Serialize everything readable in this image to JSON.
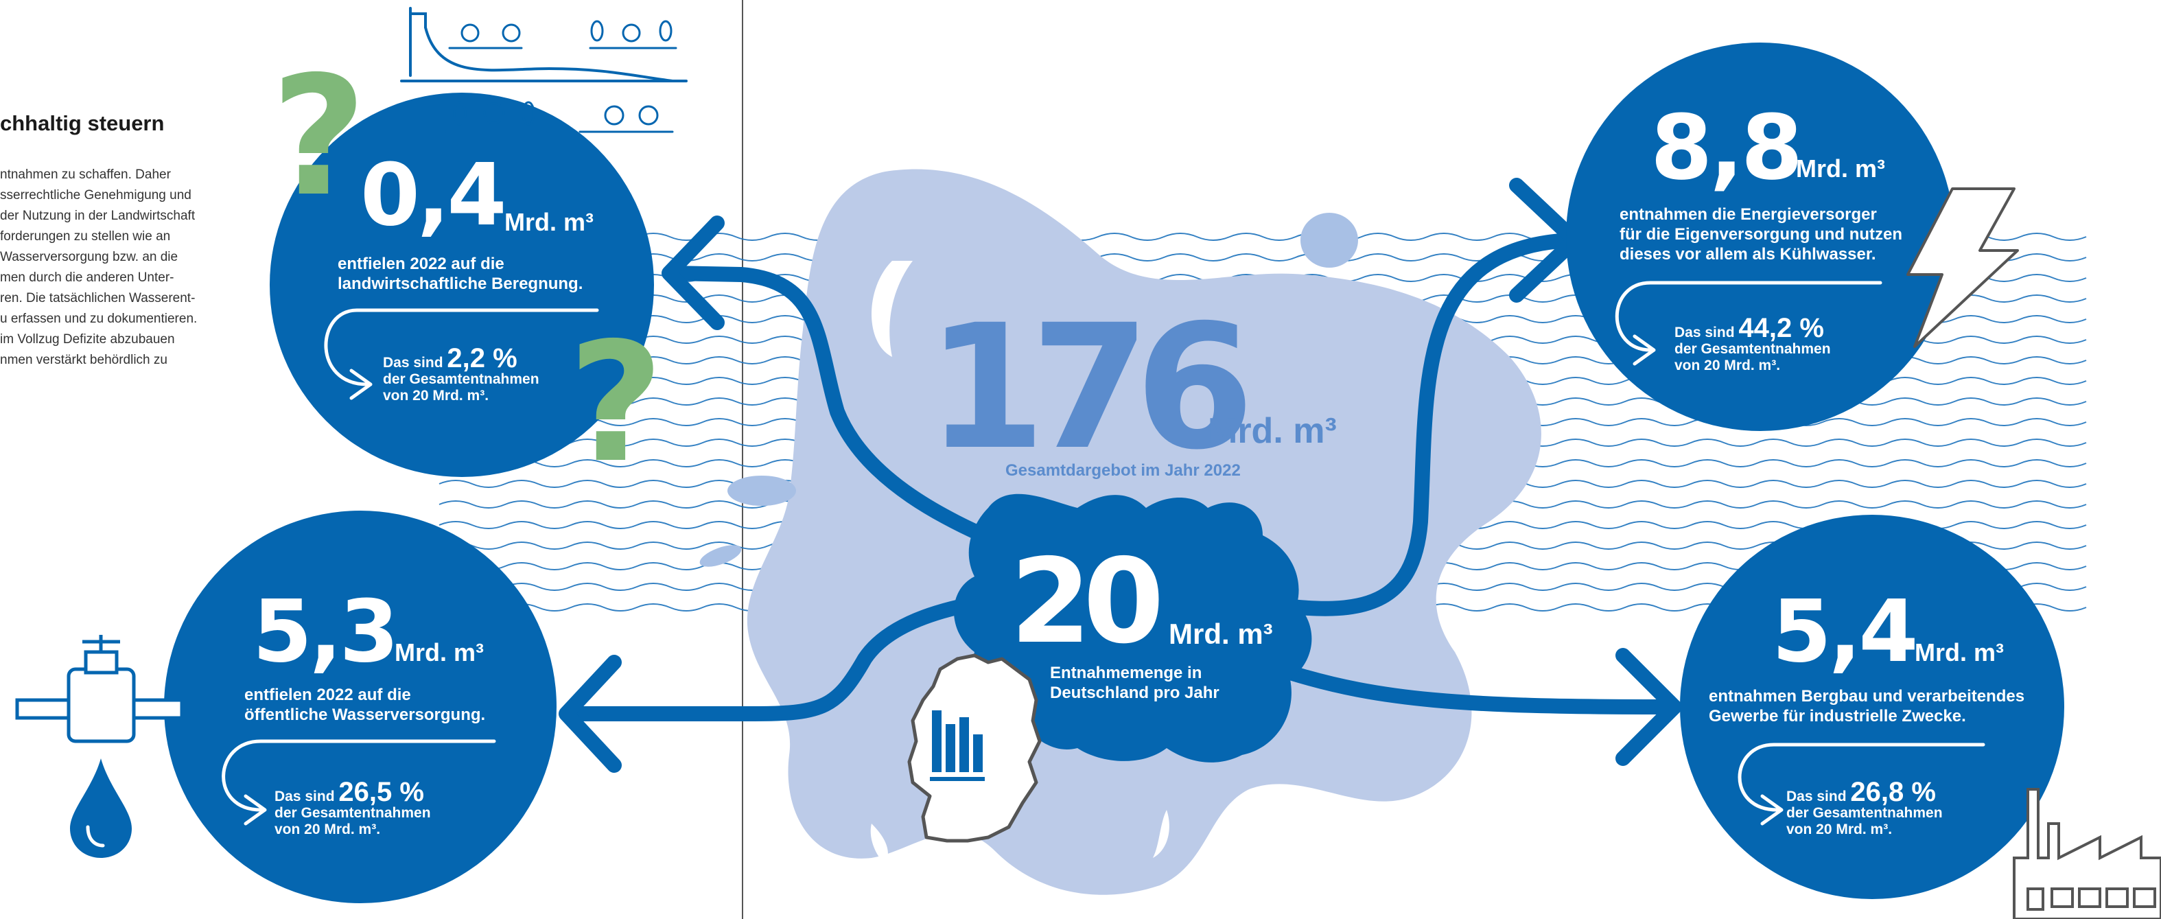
{
  "side": {
    "heading": "chhaltig steuern",
    "lines": [
      "ntnahmen zu schaffen. Daher",
      "sserrechtliche Genehmigung und",
      "der Nutzung in der Landwirtschaft",
      "forderungen zu stellen wie an",
      "Wasserversorgung bzw. an die",
      "men durch die anderen Unter-",
      "ren. Die tatsächlichen Wasserent-",
      "u erfassen und zu dokumentieren.",
      "im Vollzug Defizite abzubauen",
      "nmen verstärkt behördlich zu"
    ]
  },
  "total": {
    "value": "176",
    "unit": "Mrd. m³",
    "label": "Gesamtdargebot im Jahr 2022"
  },
  "withdrawal": {
    "value": "20",
    "unit": "Mrd. m³",
    "label_lines": [
      "Entnahmemenge in",
      "Deutschland pro Jahr"
    ]
  },
  "sectors": [
    {
      "id": "agriculture",
      "value": "0,4",
      "unit": "Mrd. m³",
      "desc_lines": [
        "entfielen 2022 auf die",
        "landwirtschaftliche Beregnung."
      ],
      "share_prefix": "Das sind",
      "share_value": "2,2 %",
      "share_lines": [
        "der Gesamtentnahmen",
        "von 20 Mrd. m³."
      ]
    },
    {
      "id": "energy",
      "value": "8,8",
      "unit": "Mrd. m³",
      "desc_lines": [
        "entnahmen die Energieversorger",
        "für die Eigenversorgung und nutzen",
        "dieses vor allem als Kühlwasser."
      ],
      "share_prefix": "Das sind",
      "share_value": "44,2 %",
      "share_lines": [
        "der Gesamtentnahmen",
        "von 20 Mrd. m³."
      ]
    },
    {
      "id": "public",
      "value": "5,3",
      "unit": "Mrd. m³",
      "desc_lines": [
        "entfielen 2022 auf die",
        "öffentliche Wasserversorgung."
      ],
      "share_prefix": "Das sind",
      "share_value": "26,5 %",
      "share_lines": [
        "der Gesamtentnahmen",
        "von 20 Mrd. m³."
      ]
    },
    {
      "id": "industry",
      "value": "5,4",
      "unit": "Mrd. m³",
      "desc_lines": [
        "entnahmen Bergbau und verarbeitendes",
        "Gewerbe für industrielle Zwecke."
      ],
      "share_prefix": "Das sind",
      "share_value": "26,8 %",
      "share_lines": [
        "der Gesamtentnahmen",
        "von 20 Mrd. m³."
      ]
    }
  ],
  "icons": [
    "question-mark-icon",
    "irrigation-icon",
    "lightning-icon",
    "water-tap-icon",
    "water-drop-icon",
    "factory-icon",
    "germany-map-icon",
    "bar-chart-icon"
  ],
  "colors": {
    "dark_blue": "#0566b0",
    "mid_blue": "#5b8ccd",
    "light_blue": "#bccbe8",
    "green": "#7fb879"
  }
}
